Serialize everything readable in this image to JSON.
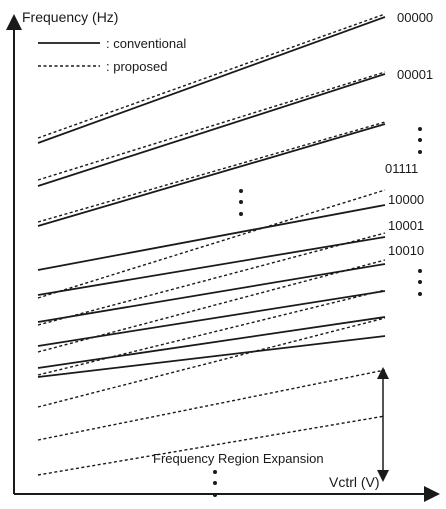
{
  "axes": {
    "y_label": "Frequency (Hz)",
    "x_label": "Vctrl (V)"
  },
  "legend": {
    "conventional": ": conventional",
    "proposed": ": proposed"
  },
  "codes": [
    "00000",
    "00001",
    "01111",
    "10000",
    "10001",
    "10010"
  ],
  "annotation": "Frequency Region Expansion",
  "line_styles": {
    "conventional": "solid",
    "proposed": "dashed"
  },
  "colors": {
    "ink": "#1a1a1a",
    "background": "#ffffff"
  }
}
